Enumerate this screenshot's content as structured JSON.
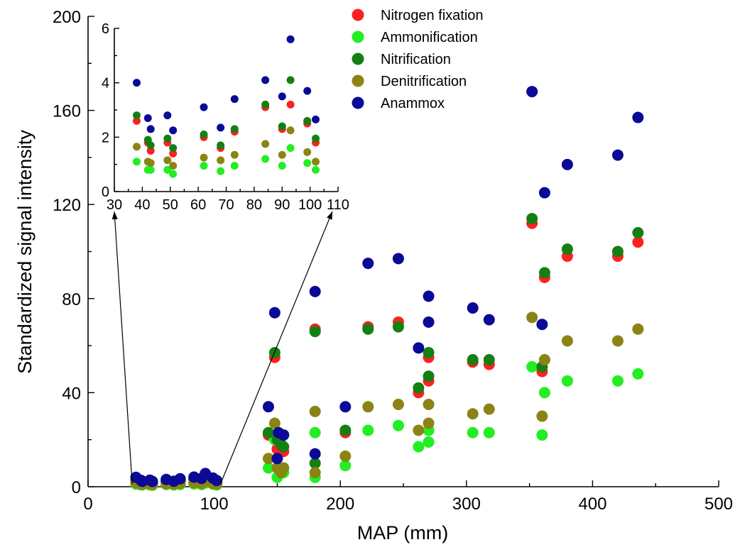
{
  "chart_data": {
    "type": "scatter",
    "title": "",
    "xlabel": "MAP (mm)",
    "ylabel": "Standardized signal intensity",
    "xlim": [
      0,
      500
    ],
    "ylim": [
      0,
      200
    ],
    "xticks": [
      "0",
      "100",
      "200",
      "300",
      "400",
      "500"
    ],
    "yticks": [
      "0",
      "40",
      "80",
      "120",
      "160",
      "200"
    ],
    "legend_position": "top-right",
    "grid": false,
    "series": [
      {
        "name": "Nitrogen fixation",
        "color": "#ff2020",
        "points": [
          [
            143,
            22
          ],
          [
            148,
            55
          ],
          [
            150,
            16
          ],
          [
            153,
            18
          ],
          [
            155,
            15
          ],
          [
            180,
            67
          ],
          [
            204,
            23
          ],
          [
            222,
            68
          ],
          [
            246,
            70
          ],
          [
            262,
            40
          ],
          [
            270,
            55
          ],
          [
            270,
            45
          ],
          [
            305,
            53
          ],
          [
            318,
            52
          ],
          [
            352,
            112
          ],
          [
            360,
            49
          ],
          [
            362,
            89
          ],
          [
            380,
            98
          ],
          [
            420,
            98
          ],
          [
            436,
            104
          ]
        ]
      },
      {
        "name": "Ammonification",
        "color": "#22ee22",
        "points": [
          [
            143,
            8
          ],
          [
            148,
            20
          ],
          [
            150,
            4
          ],
          [
            155,
            6
          ],
          [
            180,
            4
          ],
          [
            180,
            23
          ],
          [
            204,
            9
          ],
          [
            222,
            24
          ],
          [
            246,
            26
          ],
          [
            262,
            17
          ],
          [
            270,
            24
          ],
          [
            270,
            19
          ],
          [
            305,
            23
          ],
          [
            318,
            23
          ],
          [
            352,
            51
          ],
          [
            360,
            22
          ],
          [
            362,
            40
          ],
          [
            380,
            45
          ],
          [
            420,
            45
          ],
          [
            436,
            48
          ]
        ]
      },
      {
        "name": "Nitrification",
        "color": "#148014",
        "points": [
          [
            143,
            23
          ],
          [
            148,
            57
          ],
          [
            150,
            20
          ],
          [
            153,
            18
          ],
          [
            155,
            17
          ],
          [
            180,
            66
          ],
          [
            180,
            10
          ],
          [
            204,
            24
          ],
          [
            222,
            67
          ],
          [
            246,
            68
          ],
          [
            262,
            42
          ],
          [
            270,
            57
          ],
          [
            270,
            47
          ],
          [
            305,
            54
          ],
          [
            318,
            54
          ],
          [
            352,
            114
          ],
          [
            360,
            51
          ],
          [
            362,
            91
          ],
          [
            380,
            101
          ],
          [
            420,
            100
          ],
          [
            436,
            108
          ]
        ]
      },
      {
        "name": "Denitrification",
        "color": "#8b8414",
        "points": [
          [
            143,
            12
          ],
          [
            148,
            27
          ],
          [
            150,
            8
          ],
          [
            153,
            6
          ],
          [
            155,
            8
          ],
          [
            180,
            32
          ],
          [
            180,
            6
          ],
          [
            204,
            13
          ],
          [
            222,
            34
          ],
          [
            246,
            35
          ],
          [
            262,
            24
          ],
          [
            270,
            35
          ],
          [
            270,
            27
          ],
          [
            305,
            31
          ],
          [
            318,
            33
          ],
          [
            352,
            72
          ],
          [
            360,
            30
          ],
          [
            362,
            54
          ],
          [
            380,
            62
          ],
          [
            420,
            62
          ],
          [
            436,
            67
          ]
        ]
      },
      {
        "name": "Anammox",
        "color": "#0a0a96",
        "points": [
          [
            143,
            34
          ],
          [
            148,
            74
          ],
          [
            150,
            12
          ],
          [
            151,
            23
          ],
          [
            155,
            22
          ],
          [
            180,
            83
          ],
          [
            180,
            14
          ],
          [
            204,
            34
          ],
          [
            222,
            95
          ],
          [
            246,
            97
          ],
          [
            262,
            59
          ],
          [
            270,
            81
          ],
          [
            270,
            70
          ],
          [
            305,
            76
          ],
          [
            318,
            71
          ],
          [
            352,
            168
          ],
          [
            360,
            69
          ],
          [
            362,
            125
          ],
          [
            380,
            137
          ],
          [
            420,
            141
          ],
          [
            436,
            157
          ]
        ]
      }
    ],
    "inset": {
      "xlim": [
        30,
        110
      ],
      "ylim": [
        0,
        6
      ],
      "xticks": [
        "30",
        "40",
        "50",
        "60",
        "70",
        "80",
        "90",
        "100",
        "110"
      ],
      "yticks": [
        "0",
        "2",
        "4",
        "6"
      ],
      "series": [
        {
          "name": "Nitrogen fixation",
          "color": "#ff2020",
          "points": [
            [
              38,
              2.6
            ],
            [
              42,
              1.8
            ],
            [
              43,
              1.5
            ],
            [
              49,
              1.8
            ],
            [
              51,
              1.4
            ],
            [
              62,
              2.0
            ],
            [
              68,
              1.6
            ],
            [
              73,
              2.2
            ],
            [
              84,
              3.1
            ],
            [
              90,
              2.3
            ],
            [
              93,
              3.2
            ],
            [
              99,
              2.5
            ],
            [
              102,
              1.8
            ]
          ]
        },
        {
          "name": "Ammonification",
          "color": "#22ee22",
          "points": [
            [
              38,
              1.1
            ],
            [
              42,
              0.8
            ],
            [
              43,
              0.8
            ],
            [
              49,
              0.8
            ],
            [
              51,
              0.65
            ],
            [
              62,
              0.95
            ],
            [
              68,
              0.75
            ],
            [
              73,
              0.95
            ],
            [
              84,
              1.2
            ],
            [
              90,
              0.95
            ],
            [
              93,
              1.6
            ],
            [
              99,
              1.05
            ],
            [
              102,
              0.8
            ]
          ]
        },
        {
          "name": "Nitrification",
          "color": "#148014",
          "points": [
            [
              38,
              2.8
            ],
            [
              42,
              1.9
            ],
            [
              43,
              1.7
            ],
            [
              49,
              1.95
            ],
            [
              51,
              1.6
            ],
            [
              62,
              2.1
            ],
            [
              68,
              1.7
            ],
            [
              73,
              2.3
            ],
            [
              84,
              3.2
            ],
            [
              90,
              2.4
            ],
            [
              93,
              4.1
            ],
            [
              99,
              2.6
            ],
            [
              102,
              1.95
            ]
          ]
        },
        {
          "name": "Denitrification",
          "color": "#8b8414",
          "points": [
            [
              38,
              1.65
            ],
            [
              42,
              1.1
            ],
            [
              43,
              1.05
            ],
            [
              49,
              1.15
            ],
            [
              51,
              0.95
            ],
            [
              62,
              1.25
            ],
            [
              68,
              1.15
            ],
            [
              73,
              1.35
            ],
            [
              84,
              1.75
            ],
            [
              90,
              1.35
            ],
            [
              93,
              2.25
            ],
            [
              99,
              1.45
            ],
            [
              102,
              1.1
            ]
          ]
        },
        {
          "name": "Anammox",
          "color": "#0a0a96",
          "points": [
            [
              38,
              4.0
            ],
            [
              42,
              2.7
            ],
            [
              43,
              2.3
            ],
            [
              49,
              2.8
            ],
            [
              51,
              2.25
            ],
            [
              62,
              3.1
            ],
            [
              68,
              2.35
            ],
            [
              73,
              3.4
            ],
            [
              84,
              4.1
            ],
            [
              90,
              3.5
            ],
            [
              93,
              5.6
            ],
            [
              99,
              3.7
            ],
            [
              102,
              2.65
            ]
          ]
        }
      ]
    }
  }
}
